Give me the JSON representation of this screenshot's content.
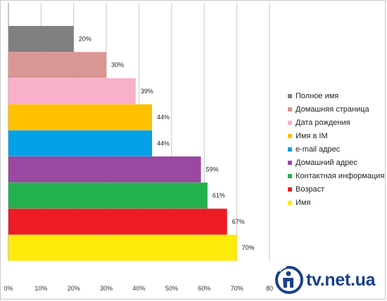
{
  "chart_data": {
    "type": "bar",
    "orientation": "horizontal",
    "categories": [
      "Полное имя",
      "Домашняя страница",
      "Дата рождения",
      "Имя в IM",
      "e-mail адрес",
      "Домашний адрес",
      "Контактная информация",
      "Возраст",
      "Имя"
    ],
    "values": [
      20,
      30,
      39,
      44,
      44,
      59,
      61,
      67,
      70
    ],
    "data_labels": [
      "20%",
      "30%",
      "39%",
      "44%",
      "44%",
      "59%",
      "61%",
      "67%",
      "70%"
    ],
    "colors": [
      "#808080",
      "#d99694",
      "#f9b0cb",
      "#ffc000",
      "#00a1e6",
      "#9b48a2",
      "#22b14c",
      "#ed1c24",
      "#ffeb0a"
    ],
    "xlim": [
      0,
      80
    ],
    "x_ticks": [
      "0%",
      "10%",
      "20%",
      "30%",
      "40%",
      "50%",
      "60%",
      "70%",
      "80"
    ],
    "grid": "vertical",
    "legend": "right",
    "legend_entries": [
      "Полное имя",
      "Домашняя страница",
      "Дата рождения",
      "Имя в IM",
      "e-mail адрес",
      "Домашний адрес",
      "Контактная информация",
      "Возраст",
      "Имя"
    ],
    "title": "",
    "xlabel": "",
    "ylabel": ""
  },
  "watermark": {
    "text": "tv.net.ua",
    "color": "#1a3f8c",
    "icon": "info-person-icon"
  }
}
